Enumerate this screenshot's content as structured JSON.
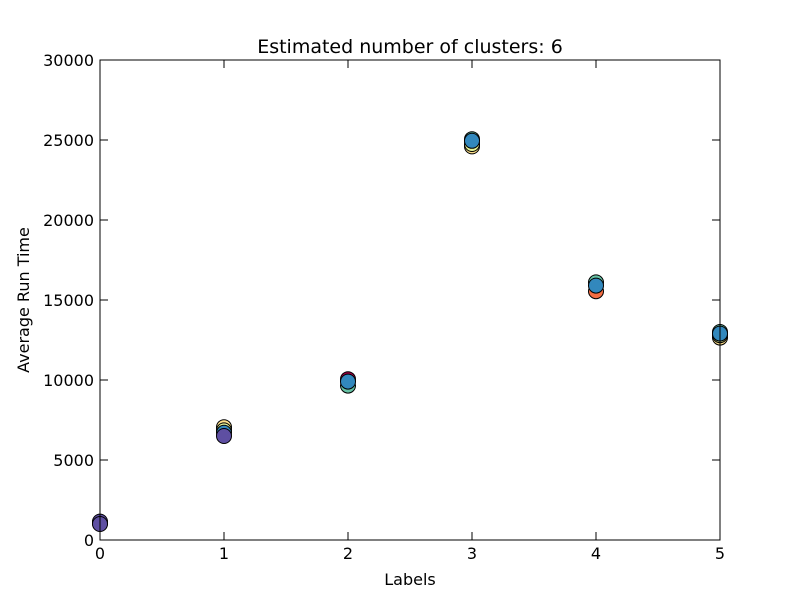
{
  "chart_data": {
    "type": "scatter",
    "title": "Estimated number of clusters: 6",
    "xlabel": "Labels",
    "ylabel": "Average Run Time",
    "xlim": [
      0,
      5
    ],
    "ylim": [
      0,
      30000
    ],
    "xticks": [
      "0",
      "1",
      "2",
      "3",
      "4",
      "5"
    ],
    "yticks": [
      "0",
      "5000",
      "10000",
      "15000",
      "20000",
      "25000",
      "30000"
    ],
    "grid": false,
    "legend": "none",
    "series": [
      {
        "color": "#9e0142",
        "points": [
          [
            0,
            1100
          ],
          [
            2,
            10050
          ]
        ]
      },
      {
        "color": "#f46d43",
        "points": [
          [
            0,
            1050
          ],
          [
            4,
            15550
          ]
        ]
      },
      {
        "color": "#fee08b",
        "points": [
          [
            1,
            7050
          ],
          [
            3,
            24600
          ],
          [
            5,
            12650
          ]
        ]
      },
      {
        "color": "#e6f598",
        "points": [
          [
            1,
            6850
          ],
          [
            3,
            24750
          ],
          [
            5,
            12800
          ]
        ]
      },
      {
        "color": "#66c2a5",
        "points": [
          [
            2,
            9650
          ],
          [
            3,
            25050
          ],
          [
            4,
            16100
          ],
          [
            5,
            13000
          ]
        ]
      },
      {
        "color": "#3288bd",
        "points": [
          [
            1,
            6700
          ],
          [
            2,
            9900
          ],
          [
            3,
            24950
          ],
          [
            4,
            15900
          ],
          [
            5,
            12900
          ]
        ]
      },
      {
        "color": "#5e4fa2",
        "points": [
          [
            0,
            1150
          ],
          [
            1,
            6500
          ],
          [
            0,
            1000
          ]
        ]
      }
    ]
  }
}
